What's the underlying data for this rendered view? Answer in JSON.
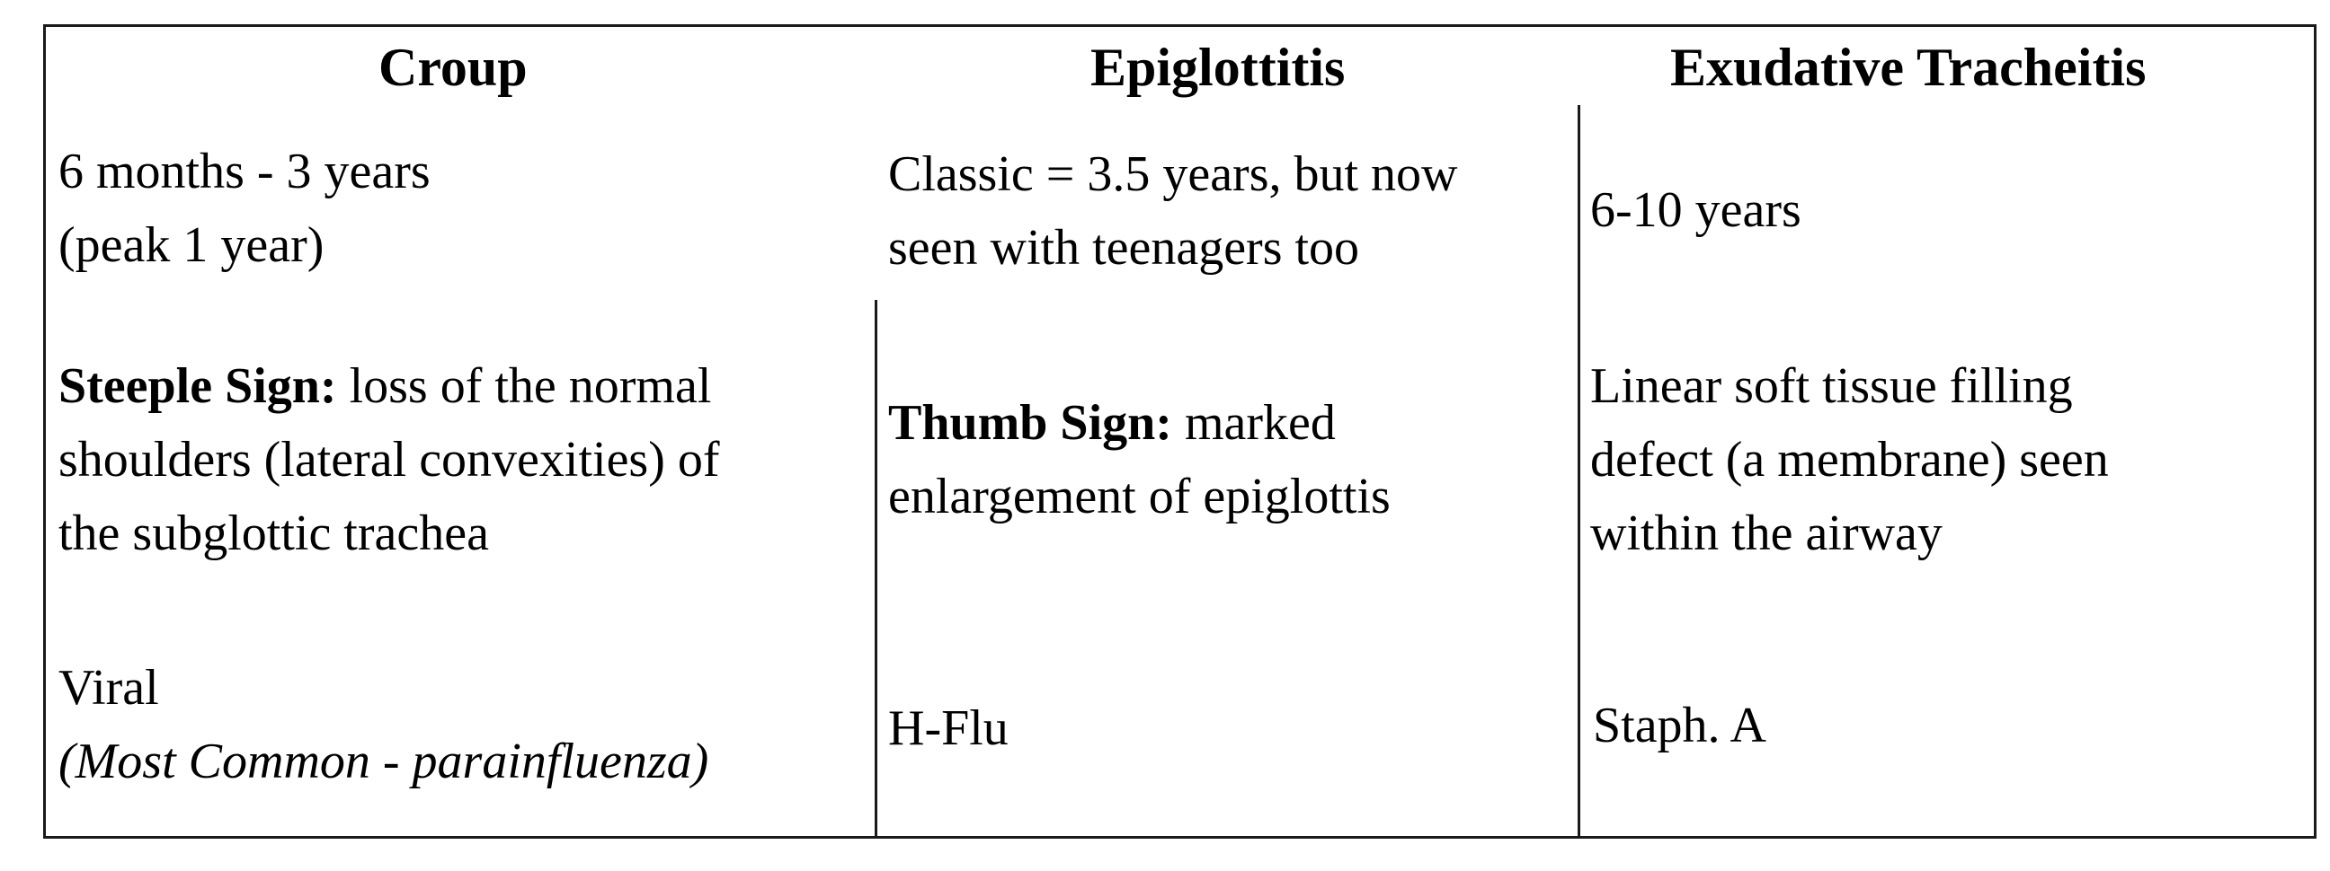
{
  "headers": {
    "croup": "Croup",
    "epiglottitis": "Epiglottitis",
    "tracheitis": "Exudative Tracheitis"
  },
  "rows": {
    "age": {
      "croup": [
        "6 months - 3 years",
        "(peak 1 year)"
      ],
      "epiglottitis": [
        "Classic = 3.5 years, but now",
        "seen with teenagers too"
      ],
      "tracheitis": [
        "6-10 years"
      ]
    },
    "sign": {
      "croup": {
        "lead": "Steeple Sign:",
        "lines": [
          " loss of the normal",
          "shoulders (lateral convexities) of",
          "the subglottic trachea"
        ]
      },
      "epiglottitis": {
        "lead": "Thumb Sign:",
        "lines": [
          " marked",
          "enlargement of epiglottis"
        ]
      },
      "tracheitis": {
        "lines": [
          "Linear soft tissue filling",
          "defect (a membrane) seen",
          "within the airway"
        ]
      }
    },
    "cause": {
      "croup": {
        "main": "Viral",
        "note": "(Most Common - parainfluenza)"
      },
      "epiglottitis": "H-Flu",
      "tracheitis": "Staph. A"
    }
  }
}
